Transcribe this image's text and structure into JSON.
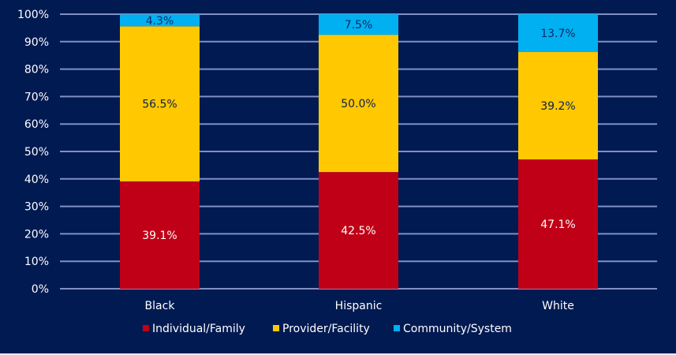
{
  "chart_data": {
    "type": "bar",
    "stacked": true,
    "title": "",
    "xlabel": "",
    "ylabel": "",
    "ylim": [
      0,
      100
    ],
    "y_ticks": [
      "0%",
      "10%",
      "20%",
      "30%",
      "40%",
      "50%",
      "60%",
      "70%",
      "80%",
      "90%",
      "100%"
    ],
    "grid": true,
    "legend_position": "bottom",
    "categories": [
      "Black",
      "Hispanic",
      "White"
    ],
    "series": [
      {
        "name": "Individual/Family",
        "color": "#c00016",
        "label_color": "#ffffff",
        "values": [
          39.1,
          42.5,
          47.1
        ],
        "labels": [
          "39.1%",
          "42.5%",
          "47.1%"
        ]
      },
      {
        "name": "Provider/Facility",
        "color": "#ffc800",
        "label_color": "#0d1f4f",
        "values": [
          56.5,
          50.0,
          39.2
        ],
        "labels": [
          "56.5%",
          "50.0%",
          "39.2%"
        ]
      },
      {
        "name": "Community/System",
        "color": "#00b0f0",
        "label_color": "#0d2a6b",
        "values": [
          4.3,
          7.5,
          13.7
        ],
        "labels": [
          "4.3%",
          "7.5%",
          "13.7%"
        ]
      }
    ],
    "colors": {
      "background": "#021a52",
      "gridline": "#7f90c4"
    }
  }
}
